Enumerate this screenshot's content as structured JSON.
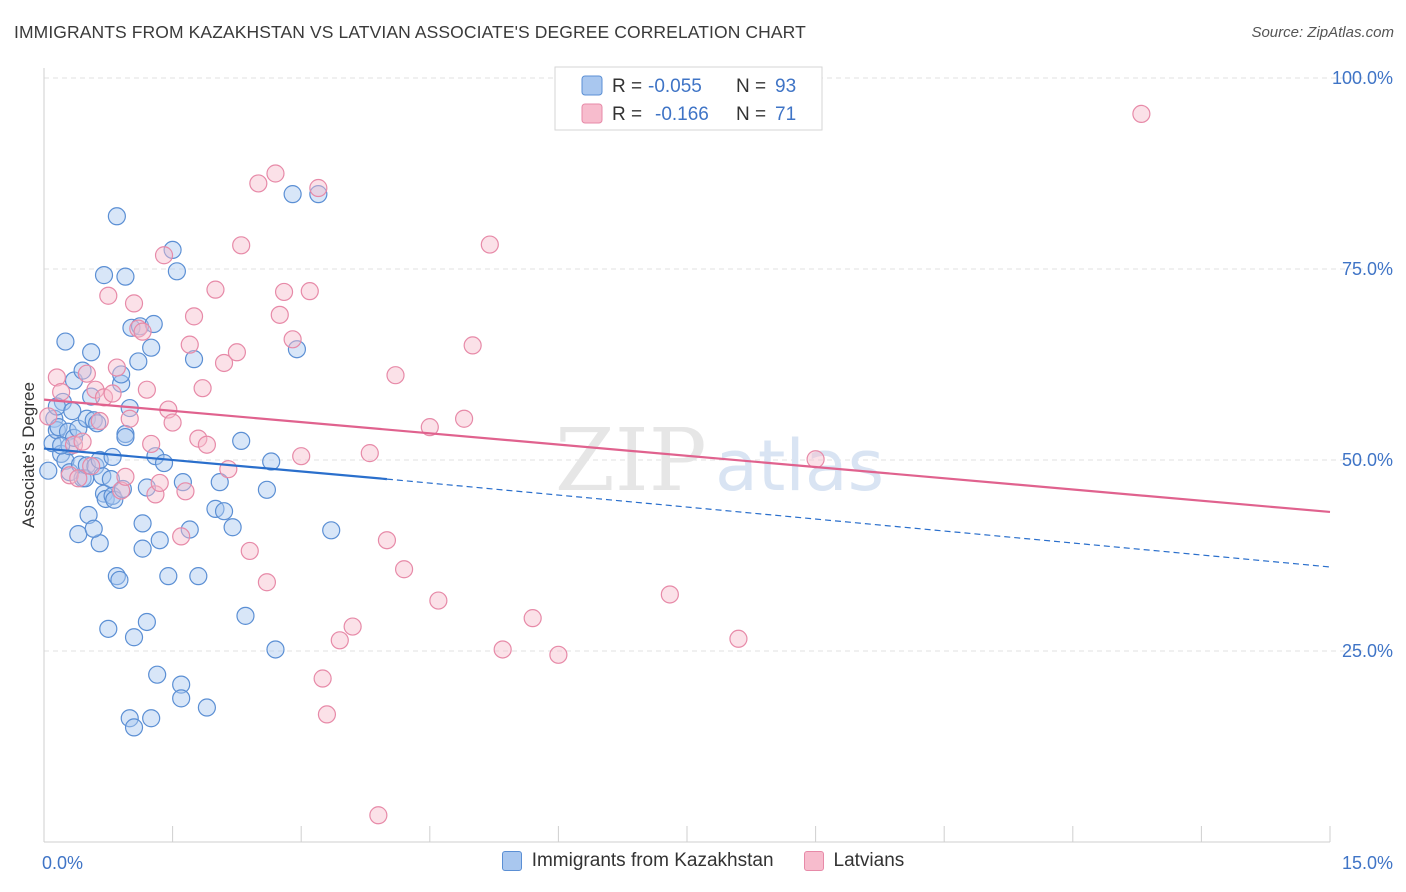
{
  "title": "IMMIGRANTS FROM KAZAKHSTAN VS LATVIAN ASSOCIATE'S DEGREE CORRELATION CHART",
  "source": "Source: ZipAtlas.com",
  "watermark": {
    "zip": "ZIP",
    "atlas": "atlas"
  },
  "legend_top": [
    {
      "r_label": "R =",
      "r_value": "-0.055",
      "n_label": "N =",
      "n_value": "93"
    },
    {
      "r_label": "R =",
      "r_value": "-0.166",
      "n_label": "N =",
      "n_value": "71"
    }
  ],
  "legend_bottom": [
    {
      "label": "Immigrants from Kazakhstan"
    },
    {
      "label": "Latvians"
    }
  ],
  "colors": {
    "blue_fill": "#a9c7ef",
    "blue_stroke": "#5b8fd4",
    "blue_line": "#2a6fcc",
    "pink_fill": "#f7bccd",
    "pink_stroke": "#e78aa8",
    "pink_line": "#e0628e",
    "axis_text": "#3f74c6",
    "grid": "#e2e2e2"
  },
  "chart_data": {
    "type": "scatter",
    "title": "IMMIGRANTS FROM KAZAKHSTAN VS LATVIAN ASSOCIATE'S DEGREE CORRELATION CHART",
    "xlabel": "",
    "ylabel": "Associate's Degree",
    "xlim": [
      0,
      15
    ],
    "ylim": [
      0,
      100
    ],
    "x_tick_labels": [
      "0.0%",
      "15.0%"
    ],
    "y_ticks": [
      25,
      50,
      75,
      100
    ],
    "y_tick_labels": [
      "25.0%",
      "50.0%",
      "75.0%",
      "100.0%"
    ],
    "grid": true,
    "legend_position": "top-center",
    "series": [
      {
        "name": "Immigrants from Kazakhstan",
        "r": -0.055,
        "n": 93,
        "trend": {
          "x": [
            0,
            4.0
          ],
          "y": [
            51.5,
            47.5
          ]
        },
        "trend_dashed": {
          "x": [
            4.0,
            15.0
          ],
          "y": [
            47.5,
            36.0
          ]
        },
        "points": [
          [
            0.05,
            48.6
          ],
          [
            0.1,
            52.2
          ],
          [
            0.12,
            55.4
          ],
          [
            0.15,
            53.9
          ],
          [
            0.17,
            54.3
          ],
          [
            0.2,
            50.8
          ],
          [
            0.22,
            57.6
          ],
          [
            0.25,
            49.9
          ],
          [
            0.25,
            65.5
          ],
          [
            0.28,
            53.7
          ],
          [
            0.3,
            51.8
          ],
          [
            0.3,
            48.4
          ],
          [
            0.35,
            60.4
          ],
          [
            0.35,
            52.9
          ],
          [
            0.4,
            54.1
          ],
          [
            0.4,
            40.3
          ],
          [
            0.42,
            49.4
          ],
          [
            0.45,
            47.6
          ],
          [
            0.48,
            47.6
          ],
          [
            0.5,
            55.4
          ],
          [
            0.5,
            49.3
          ],
          [
            0.52,
            42.8
          ],
          [
            0.55,
            64.1
          ],
          [
            0.55,
            58.3
          ],
          [
            0.58,
            55.2
          ],
          [
            0.6,
            49.2
          ],
          [
            0.62,
            54.8
          ],
          [
            0.65,
            39.1
          ],
          [
            0.68,
            47.9
          ],
          [
            0.7,
            45.6
          ],
          [
            0.7,
            74.2
          ],
          [
            0.72,
            44.9
          ],
          [
            0.75,
            27.9
          ],
          [
            0.78,
            47.5
          ],
          [
            0.8,
            45.3
          ],
          [
            0.82,
            44.8
          ],
          [
            0.85,
            34.8
          ],
          [
            0.85,
            81.9
          ],
          [
            0.88,
            34.3
          ],
          [
            0.9,
            60.0
          ],
          [
            0.9,
            61.2
          ],
          [
            0.95,
            53.4
          ],
          [
            0.95,
            53.0
          ],
          [
            0.95,
            74.0
          ],
          [
            1.0,
            16.2
          ],
          [
            1.02,
            67.3
          ],
          [
            1.05,
            15.0
          ],
          [
            1.05,
            26.8
          ],
          [
            1.1,
            62.9
          ],
          [
            1.12,
            67.5
          ],
          [
            1.15,
            38.4
          ],
          [
            1.2,
            28.8
          ],
          [
            1.2,
            46.4
          ],
          [
            1.25,
            64.7
          ],
          [
            1.25,
            16.2
          ],
          [
            1.28,
            67.8
          ],
          [
            1.3,
            50.5
          ],
          [
            1.32,
            21.9
          ],
          [
            1.35,
            39.5
          ],
          [
            1.4,
            49.6
          ],
          [
            1.45,
            34.8
          ],
          [
            1.5,
            77.5
          ],
          [
            1.55,
            74.7
          ],
          [
            1.6,
            20.6
          ],
          [
            1.6,
            18.8
          ],
          [
            1.62,
            47.1
          ],
          [
            1.7,
            40.9
          ],
          [
            1.75,
            63.2
          ],
          [
            1.8,
            34.8
          ],
          [
            1.9,
            17.6
          ],
          [
            2.0,
            43.6
          ],
          [
            2.05,
            47.1
          ],
          [
            2.1,
            43.3
          ],
          [
            2.2,
            41.2
          ],
          [
            2.3,
            52.5
          ],
          [
            2.35,
            29.6
          ],
          [
            2.6,
            46.1
          ],
          [
            2.65,
            49.8
          ],
          [
            2.7,
            25.2
          ],
          [
            2.9,
            84.8
          ],
          [
            2.95,
            64.5
          ],
          [
            3.2,
            84.8
          ],
          [
            3.35,
            40.8
          ],
          [
            0.15,
            57.0
          ],
          [
            0.33,
            56.4
          ],
          [
            0.65,
            50.0
          ],
          [
            0.8,
            50.4
          ],
          [
            1.0,
            56.8
          ],
          [
            0.45,
            61.7
          ],
          [
            0.58,
            41.0
          ],
          [
            0.92,
            46.2
          ],
          [
            1.15,
            41.7
          ],
          [
            0.2,
            51.9
          ]
        ]
      },
      {
        "name": "Latvians",
        "r": -0.166,
        "n": 71,
        "trend": {
          "x": [
            0,
            15.0
          ],
          "y": [
            57.9,
            43.2
          ]
        },
        "points": [
          [
            0.05,
            55.7
          ],
          [
            0.15,
            60.8
          ],
          [
            0.2,
            58.9
          ],
          [
            0.3,
            48.0
          ],
          [
            0.35,
            52.0
          ],
          [
            0.4,
            47.6
          ],
          [
            0.45,
            52.4
          ],
          [
            0.5,
            61.3
          ],
          [
            0.55,
            49.2
          ],
          [
            0.6,
            59.2
          ],
          [
            0.65,
            55.1
          ],
          [
            0.7,
            58.2
          ],
          [
            0.75,
            71.5
          ],
          [
            0.8,
            58.7
          ],
          [
            0.85,
            62.1
          ],
          [
            0.9,
            46.0
          ],
          [
            0.95,
            47.8
          ],
          [
            1.0,
            55.4
          ],
          [
            1.05,
            70.5
          ],
          [
            1.1,
            67.2
          ],
          [
            1.15,
            66.8
          ],
          [
            1.2,
            59.2
          ],
          [
            1.25,
            52.1
          ],
          [
            1.3,
            45.5
          ],
          [
            1.35,
            47.0
          ],
          [
            1.4,
            76.8
          ],
          [
            1.45,
            56.6
          ],
          [
            1.5,
            54.9
          ],
          [
            1.6,
            40.0
          ],
          [
            1.65,
            45.9
          ],
          [
            1.7,
            65.1
          ],
          [
            1.75,
            68.8
          ],
          [
            1.8,
            52.8
          ],
          [
            1.85,
            59.4
          ],
          [
            1.9,
            52.0
          ],
          [
            2.0,
            72.3
          ],
          [
            2.1,
            62.7
          ],
          [
            2.15,
            48.8
          ],
          [
            2.25,
            64.1
          ],
          [
            2.3,
            78.1
          ],
          [
            2.4,
            38.1
          ],
          [
            2.5,
            86.2
          ],
          [
            2.6,
            34.0
          ],
          [
            2.7,
            87.5
          ],
          [
            2.75,
            69.0
          ],
          [
            2.8,
            72.0
          ],
          [
            2.9,
            65.8
          ],
          [
            3.0,
            50.5
          ],
          [
            3.1,
            72.1
          ],
          [
            3.2,
            85.6
          ],
          [
            3.25,
            21.4
          ],
          [
            3.3,
            16.7
          ],
          [
            3.45,
            26.4
          ],
          [
            3.6,
            28.2
          ],
          [
            3.8,
            50.9
          ],
          [
            3.9,
            3.5
          ],
          [
            4.0,
            39.5
          ],
          [
            4.1,
            61.1
          ],
          [
            4.2,
            35.7
          ],
          [
            4.5,
            54.3
          ],
          [
            4.6,
            31.6
          ],
          [
            4.9,
            55.4
          ],
          [
            5.0,
            65.0
          ],
          [
            5.2,
            78.2
          ],
          [
            5.35,
            25.2
          ],
          [
            5.7,
            29.3
          ],
          [
            6.0,
            24.5
          ],
          [
            7.3,
            32.4
          ],
          [
            8.1,
            26.6
          ],
          [
            9.0,
            50.1
          ],
          [
            12.8,
            95.3
          ]
        ]
      }
    ]
  }
}
